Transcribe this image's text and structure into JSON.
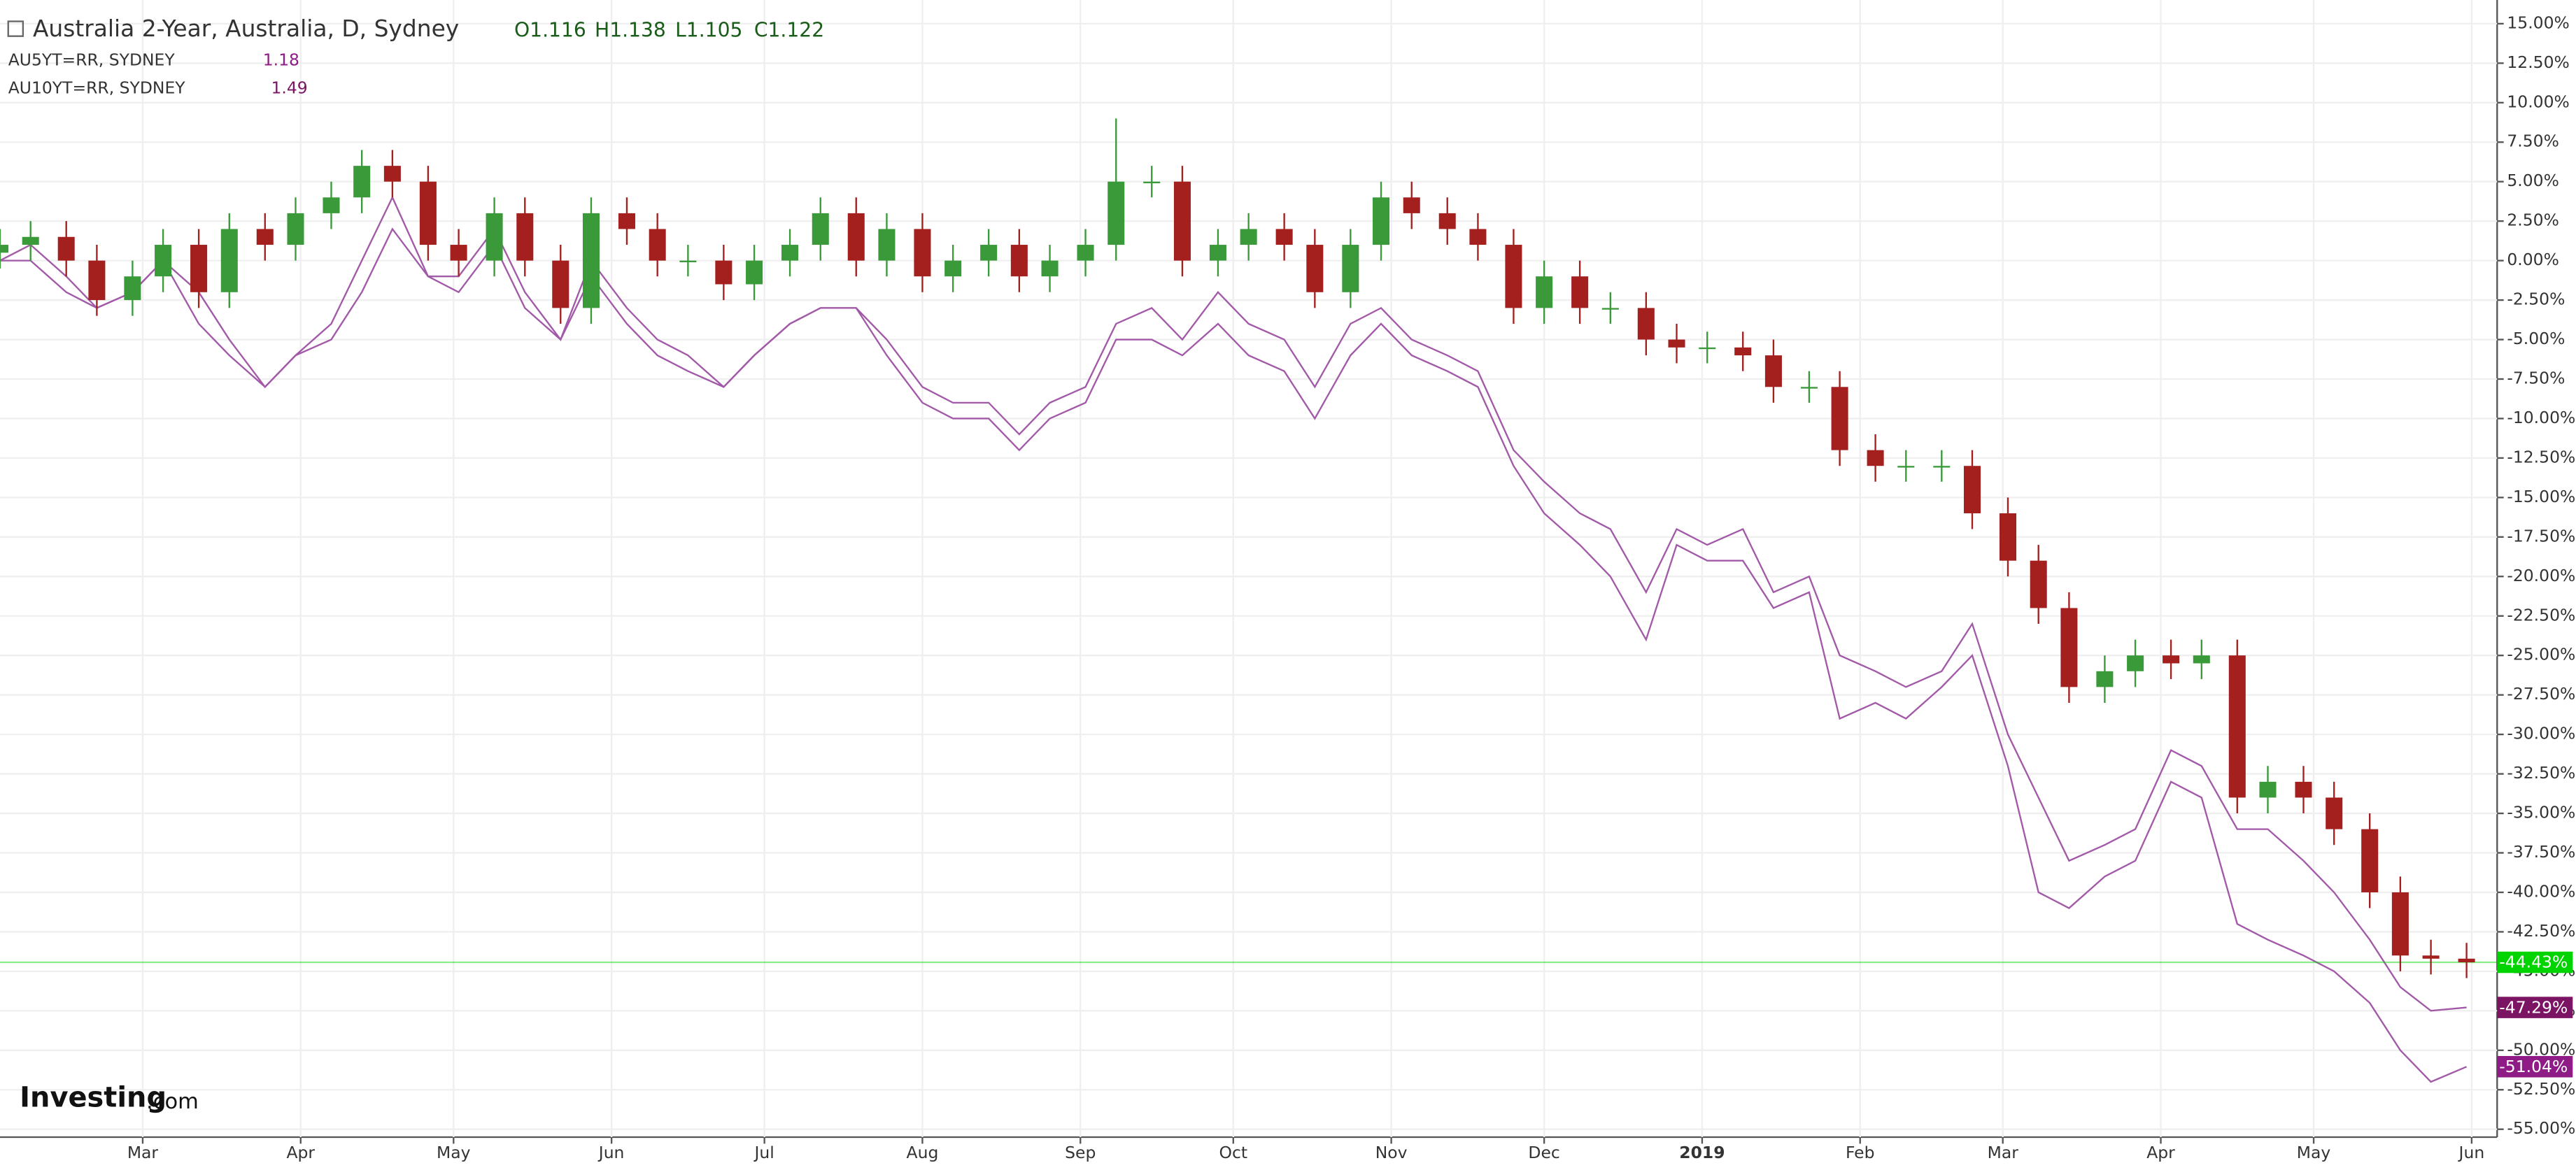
{
  "chart_data": {
    "type": "candlestick",
    "title": "Australia 2-Year, Australia, D, Sydney",
    "header_values": [
      "O1.116",
      "H1.138",
      "L1.105",
      "C1.122"
    ],
    "x": [
      0,
      6,
      13,
      19,
      26,
      32,
      39,
      45,
      52,
      58,
      65,
      71,
      77,
      84,
      90,
      97,
      103,
      110,
      116,
      123,
      129,
      135,
      142,
      148,
      155,
      161,
      168,
      174,
      181,
      187,
      194,
      200,
      206,
      213,
      219,
      226,
      232,
      239,
      245,
      252,
      258,
      265,
      271,
      277,
      284,
      290,
      297,
      303,
      310,
      316,
      323,
      329,
      335,
      342,
      348,
      355,
      361,
      368,
      374,
      381,
      387,
      394,
      400,
      406,
      413,
      419,
      426,
      432,
      439,
      445,
      452,
      458,
      465,
      471,
      477,
      484
    ],
    "xlim": [
      0,
      490
    ],
    "xticks": [
      {
        "value": 28,
        "label": "Mar"
      },
      {
        "value": 59,
        "label": "Apr"
      },
      {
        "value": 89,
        "label": "May"
      },
      {
        "value": 120,
        "label": "Jun"
      },
      {
        "value": 150,
        "label": "Jul"
      },
      {
        "value": 181,
        "label": "Aug"
      },
      {
        "value": 212,
        "label": "Sep"
      },
      {
        "value": 242,
        "label": "Oct"
      },
      {
        "value": 273,
        "label": "Nov"
      },
      {
        "value": 303,
        "label": "Dec"
      },
      {
        "value": 334,
        "label": "2019"
      },
      {
        "value": 365,
        "label": "Feb"
      },
      {
        "value": 393,
        "label": "Mar"
      },
      {
        "value": 424,
        "label": "Apr"
      },
      {
        "value": 454,
        "label": "May"
      },
      {
        "value": 485,
        "label": "Jun"
      }
    ],
    "ylim": [
      -55.5,
      16.5
    ],
    "yticks": [
      {
        "value": 15,
        "label": "15.00%"
      },
      {
        "value": 12.5,
        "label": "12.50%"
      },
      {
        "value": 10,
        "label": "10.00%"
      },
      {
        "value": 7.5,
        "label": "7.50%"
      },
      {
        "value": 5,
        "label": "5.00%"
      },
      {
        "value": 2.5,
        "label": "2.50%"
      },
      {
        "value": 0,
        "label": "0.00%"
      },
      {
        "value": -2.5,
        "label": "-2.50%"
      },
      {
        "value": -5,
        "label": "-5.00%"
      },
      {
        "value": -7.5,
        "label": "-7.50%"
      },
      {
        "value": -10,
        "label": "-10.00%"
      },
      {
        "value": -12.5,
        "label": "-12.50%"
      },
      {
        "value": -15,
        "label": "-15.00%"
      },
      {
        "value": -17.5,
        "label": "-17.50%"
      },
      {
        "value": -20,
        "label": "-20.00%"
      },
      {
        "value": -22.5,
        "label": "-22.50%"
      },
      {
        "value": -25,
        "label": "-25.00%"
      },
      {
        "value": -27.5,
        "label": "-27.50%"
      },
      {
        "value": -30,
        "label": "-30.00%"
      },
      {
        "value": -32.5,
        "label": "-32.50%"
      },
      {
        "value": -35,
        "label": "-35.00%"
      },
      {
        "value": -37.5,
        "label": "-37.50%"
      },
      {
        "value": -40,
        "label": "-40.00%"
      },
      {
        "value": -42.5,
        "label": "-42.50%"
      },
      {
        "value": -45,
        "label": "-45.00%"
      },
      {
        "value": -47.5,
        "label": "-47.50%"
      },
      {
        "value": -50,
        "label": "-50.00%"
      },
      {
        "value": -52.5,
        "label": "-52.50%"
      },
      {
        "value": -55,
        "label": "-55.00%"
      }
    ],
    "grid": true,
    "candles": {
      "up_color": "#3a9a3a",
      "down_color": "#a3201f",
      "last_color": "#00d400",
      "last_label": "-44.43%",
      "open": [
        0.5,
        1,
        1.5,
        0,
        -2.5,
        -1,
        1,
        -2,
        2,
        1,
        3,
        4,
        6,
        5,
        1,
        0,
        3,
        0,
        -3,
        3,
        2,
        0,
        0,
        -1.5,
        0,
        1,
        3,
        0,
        2,
        -1,
        0,
        1,
        -1,
        0,
        1,
        5,
        5,
        0,
        1,
        2,
        1,
        -2,
        1,
        4,
        3,
        2,
        1,
        -3,
        -1,
        -3,
        -3,
        -5,
        -5.5,
        -5.5,
        -6,
        -8,
        -8,
        -12,
        -13,
        -13,
        -13,
        -16,
        -19,
        -22,
        -27,
        -26,
        -25,
        -25.5,
        -25,
        -34,
        -33,
        -34,
        -36,
        -40,
        -44,
        -44.2
      ],
      "high": [
        2,
        2.5,
        2.5,
        1,
        0,
        2,
        2,
        3,
        3,
        4,
        5,
        7,
        7,
        6,
        2,
        4,
        4,
        1,
        4,
        4,
        3,
        1,
        1,
        1,
        2,
        4,
        4,
        3,
        3,
        1,
        2,
        2,
        1,
        2,
        9,
        6,
        6,
        2,
        3,
        3,
        2,
        2,
        5,
        5,
        4,
        3,
        2,
        0,
        0,
        -2,
        -2,
        -4,
        -4.5,
        -4.5,
        -5,
        -7,
        -7,
        -11,
        -12,
        -12,
        -12,
        -15,
        -18,
        -21,
        -25,
        -24,
        -24,
        -24,
        -24,
        -32,
        -32,
        -33,
        -35,
        -39,
        -43,
        -43.2
      ],
      "low": [
        -0.5,
        0,
        -1,
        -3.5,
        -3.5,
        -2,
        -3,
        -3,
        0,
        0,
        2,
        3,
        4,
        0,
        -1,
        -1,
        -1,
        -4,
        -4,
        1,
        -1,
        -1,
        -2.5,
        -2.5,
        -1,
        0,
        -1,
        -1,
        -2,
        -2,
        -1,
        -2,
        -2,
        -1,
        0,
        4,
        -1,
        -1,
        0,
        0,
        -3,
        -3,
        0,
        2,
        1,
        0,
        -4,
        -4,
        -4,
        -4,
        -6,
        -6.5,
        -6.5,
        -7,
        -9,
        -9,
        -13,
        -14,
        -14,
        -14,
        -17,
        -20,
        -23,
        -28,
        -28,
        -27,
        -26.5,
        -26.5,
        -35,
        -35,
        -35,
        -37,
        -41,
        -45,
        -45.2,
        -45.43
      ],
      "close": [
        1,
        1.5,
        0,
        -2.5,
        -1,
        1,
        -2,
        2,
        1,
        3,
        4,
        6,
        5,
        1,
        0,
        3,
        0,
        -3,
        3,
        2,
        0,
        0,
        -1.5,
        0,
        1,
        3,
        0,
        2,
        -1,
        0,
        1,
        -1,
        0,
        1,
        5,
        5,
        0,
        1,
        2,
        1,
        -2,
        1,
        4,
        3,
        2,
        1,
        -3,
        -1,
        -3,
        -3,
        -5,
        -5.5,
        -5.5,
        -6,
        -8,
        -8,
        -12,
        -13,
        -13,
        -13,
        -16,
        -19,
        -22,
        -27,
        -26,
        -25,
        -25.5,
        -25,
        -34,
        -33,
        -34,
        -36,
        -40,
        -44,
        -44.2,
        -44.43
      ]
    },
    "series": [
      {
        "type": "line",
        "name": "AU5YT=RR, SYDNEY",
        "legend_value": "1.18",
        "color": "#a259a8",
        "label_color": "#8e1b86",
        "last_label": "-51.04%",
        "values": [
          0,
          0,
          -2,
          -3,
          -2,
          0,
          -4,
          -6,
          -8,
          -6,
          -5,
          -2,
          2,
          -1,
          -2,
          1,
          -3,
          -5,
          -1,
          -4,
          -6,
          -7,
          -8,
          -6,
          -4,
          -3,
          -3,
          -6,
          -9,
          -10,
          -10,
          -12,
          -10,
          -9,
          -5,
          -5,
          -6,
          -4,
          -6,
          -7,
          -10,
          -6,
          -4,
          -6,
          -7,
          -8,
          -13,
          -16,
          -18,
          -20,
          -24,
          -18,
          -19,
          -19,
          -22,
          -21,
          -29,
          -28,
          -29,
          -27,
          -25,
          -32,
          -40,
          -41,
          -39,
          -38,
          -33,
          -34,
          -42,
          -43,
          -44,
          -45,
          -47,
          -50,
          -52,
          -51.04
        ]
      },
      {
        "type": "line",
        "name": "AU10YT=RR, SYDNEY",
        "legend_value": "1.49",
        "color": "#a259a8",
        "label_color": "#7a1463",
        "last_label": "-47.29%",
        "values": [
          0,
          1,
          -1,
          -3,
          -2,
          0,
          -2,
          -5,
          -8,
          -6,
          -4,
          0,
          4,
          -1,
          -1,
          2,
          -2,
          -5,
          0,
          -3,
          -5,
          -6,
          -8,
          -6,
          -4,
          -3,
          -3,
          -5,
          -8,
          -9,
          -9,
          -11,
          -9,
          -8,
          -4,
          -3,
          -5,
          -2,
          -4,
          -5,
          -8,
          -4,
          -3,
          -5,
          -6,
          -7,
          -12,
          -14,
          -16,
          -17,
          -21,
          -17,
          -18,
          -17,
          -21,
          -20,
          -25,
          -26,
          -27,
          -26,
          -23,
          -30,
          -34,
          -38,
          -37,
          -36,
          -31,
          -32,
          -36,
          -36,
          -38,
          -40,
          -43,
          -46,
          -47.5,
          -47.29
        ]
      }
    ],
    "logo": "Investing",
    "logo_suffix": ".com"
  }
}
